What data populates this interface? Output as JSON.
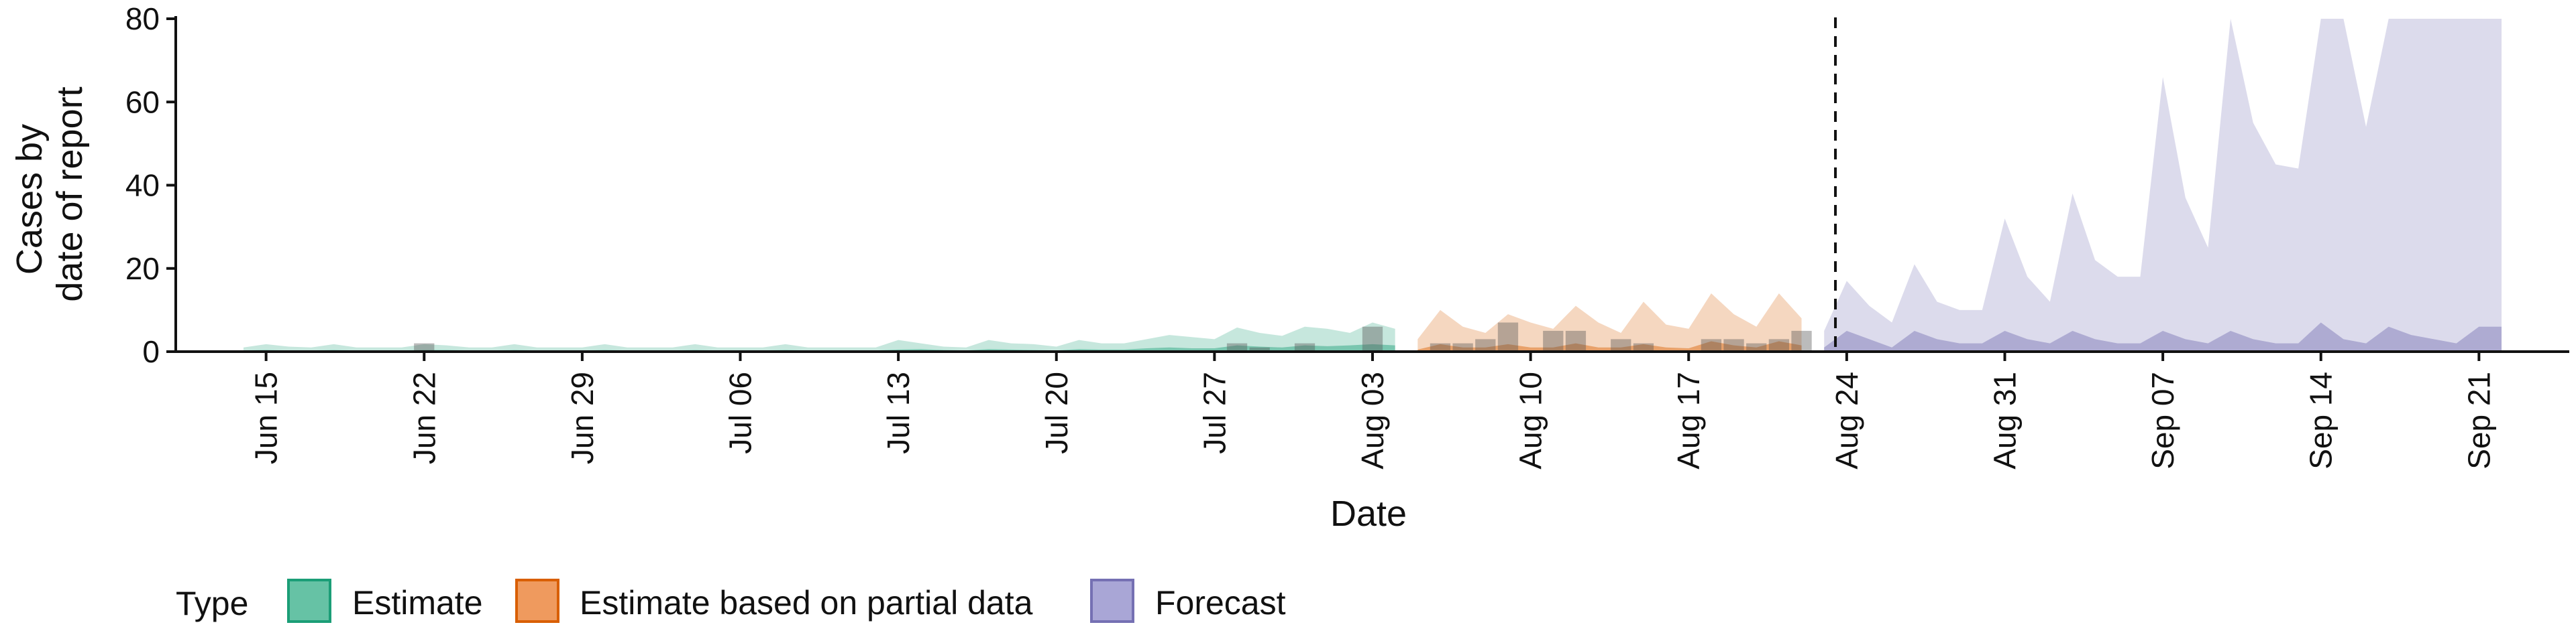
{
  "chart_data": {
    "type": "area",
    "xlabel": "Date",
    "ylabel_lines": [
      "Cases by",
      "date of report"
    ],
    "ylim": [
      0,
      80
    ],
    "y_ticks": [
      0,
      20,
      40,
      60,
      80
    ],
    "xlim": [
      "2020-06-11",
      "2020-09-25"
    ],
    "x_ticks": [
      "2020-06-15",
      "2020-06-22",
      "2020-06-29",
      "2020-07-06",
      "2020-07-13",
      "2020-07-20",
      "2020-07-27",
      "2020-08-03",
      "2020-08-10",
      "2020-08-17",
      "2020-08-24",
      "2020-08-31",
      "2020-09-07",
      "2020-09-14",
      "2020-09-21"
    ],
    "x_tick_labels": [
      "Jun 15",
      "Jun 22",
      "Jun 29",
      "Jul 06",
      "Jul 13",
      "Jul 20",
      "Jul 27",
      "Aug 03",
      "Aug 10",
      "Aug 17",
      "Aug 24",
      "Aug 31",
      "Sep 07",
      "Sep 14",
      "Sep 21"
    ],
    "forecast_date": "2020-08-23",
    "grid": false,
    "legend_position": "bottom",
    "legend_title": "Type",
    "series": [
      {
        "name": "Estimate",
        "color": "#1B9E77",
        "dates": [
          "2020-06-14",
          "2020-06-15",
          "2020-06-16",
          "2020-06-17",
          "2020-06-18",
          "2020-06-19",
          "2020-06-20",
          "2020-06-21",
          "2020-06-22",
          "2020-06-23",
          "2020-06-24",
          "2020-06-25",
          "2020-06-26",
          "2020-06-27",
          "2020-06-28",
          "2020-06-29",
          "2020-06-30",
          "2020-07-01",
          "2020-07-02",
          "2020-07-03",
          "2020-07-04",
          "2020-07-05",
          "2020-07-06",
          "2020-07-07",
          "2020-07-08",
          "2020-07-09",
          "2020-07-10",
          "2020-07-11",
          "2020-07-12",
          "2020-07-13",
          "2020-07-14",
          "2020-07-15",
          "2020-07-16",
          "2020-07-17",
          "2020-07-18",
          "2020-07-19",
          "2020-07-20",
          "2020-07-21",
          "2020-07-22",
          "2020-07-23",
          "2020-07-24",
          "2020-07-25",
          "2020-07-26",
          "2020-07-27",
          "2020-07-28",
          "2020-07-29",
          "2020-07-30",
          "2020-07-31",
          "2020-08-01",
          "2020-08-02",
          "2020-08-03",
          "2020-08-04"
        ],
        "inner_upper": [
          0.3,
          0.4,
          0.3,
          0.3,
          0.4,
          0.3,
          0.3,
          0.3,
          0.4,
          0.4,
          0.3,
          0.3,
          0.4,
          0.3,
          0.3,
          0.3,
          0.4,
          0.3,
          0.3,
          0.3,
          0.4,
          0.3,
          0.3,
          0.3,
          0.4,
          0.3,
          0.3,
          0.3,
          0.3,
          0.5,
          0.6,
          0.4,
          0.3,
          0.6,
          0.5,
          0.4,
          0.3,
          0.6,
          0.5,
          0.5,
          0.8,
          1.0,
          0.8,
          0.8,
          1.5,
          1.2,
          1.0,
          1.5,
          1.3,
          1.5,
          1.8,
          1.5
        ],
        "outer_upper": [
          1.0,
          1.8,
          1.2,
          1.0,
          1.8,
          1.0,
          1.0,
          1.0,
          1.8,
          1.5,
          1.0,
          1.0,
          1.8,
          1.0,
          1.0,
          1.0,
          1.8,
          1.0,
          1.0,
          1.0,
          1.8,
          1.0,
          1.0,
          1.0,
          1.8,
          1.0,
          1.0,
          1.0,
          1.0,
          2.8,
          2.0,
          1.2,
          1.0,
          2.8,
          2.0,
          1.8,
          1.2,
          2.8,
          2.0,
          2.0,
          3.0,
          4.0,
          3.5,
          3.0,
          5.8,
          4.5,
          3.8,
          6.0,
          5.5,
          4.5,
          7.0,
          5.5
        ],
        "observed": [
          {
            "date": "2020-06-22",
            "value": 2
          },
          {
            "date": "2020-07-28",
            "value": 2
          },
          {
            "date": "2020-07-29",
            "value": 1
          },
          {
            "date": "2020-07-31",
            "value": 2
          },
          {
            "date": "2020-08-03",
            "value": 6
          }
        ]
      },
      {
        "name": "Estimate based on partial data",
        "color": "#D95F02",
        "dates": [
          "2020-08-05",
          "2020-08-06",
          "2020-08-07",
          "2020-08-08",
          "2020-08-09",
          "2020-08-10",
          "2020-08-11",
          "2020-08-12",
          "2020-08-13",
          "2020-08-14",
          "2020-08-15",
          "2020-08-16",
          "2020-08-17",
          "2020-08-18",
          "2020-08-19",
          "2020-08-20",
          "2020-08-21",
          "2020-08-22"
        ],
        "inner_upper": [
          0.5,
          1.8,
          1.0,
          1.0,
          1.8,
          1.0,
          1.0,
          2.0,
          1.0,
          1.0,
          1.8,
          1.0,
          0.8,
          2.5,
          1.5,
          1.0,
          2.5,
          1.5
        ],
        "outer_upper": [
          3.0,
          10.0,
          6.0,
          4.5,
          9.0,
          7.0,
          5.5,
          11.0,
          7.0,
          4.5,
          12.0,
          6.5,
          5.5,
          14.0,
          9.0,
          6.0,
          14.0,
          8.0
        ],
        "observed": [
          {
            "date": "2020-08-06",
            "value": 2
          },
          {
            "date": "2020-08-07",
            "value": 2
          },
          {
            "date": "2020-08-08",
            "value": 3
          },
          {
            "date": "2020-08-09",
            "value": 7
          },
          {
            "date": "2020-08-11",
            "value": 5
          },
          {
            "date": "2020-08-12",
            "value": 5
          },
          {
            "date": "2020-08-14",
            "value": 3
          },
          {
            "date": "2020-08-15",
            "value": 2
          },
          {
            "date": "2020-08-18",
            "value": 3
          },
          {
            "date": "2020-08-19",
            "value": 3
          },
          {
            "date": "2020-08-20",
            "value": 2
          },
          {
            "date": "2020-08-21",
            "value": 3
          },
          {
            "date": "2020-08-22",
            "value": 5
          }
        ]
      },
      {
        "name": "Forecast",
        "color": "#7570B3",
        "dates": [
          "2020-08-23",
          "2020-08-24",
          "2020-08-25",
          "2020-08-26",
          "2020-08-27",
          "2020-08-28",
          "2020-08-29",
          "2020-08-30",
          "2020-08-31",
          "2020-09-01",
          "2020-09-02",
          "2020-09-03",
          "2020-09-04",
          "2020-09-05",
          "2020-09-06",
          "2020-09-07",
          "2020-09-08",
          "2020-09-09",
          "2020-09-10",
          "2020-09-11",
          "2020-09-12",
          "2020-09-13",
          "2020-09-14",
          "2020-09-15",
          "2020-09-16",
          "2020-09-17",
          "2020-09-18",
          "2020-09-19",
          "2020-09-20",
          "2020-09-21",
          "2020-09-22"
        ],
        "inner_upper": [
          1,
          5,
          3,
          1,
          5,
          3,
          2,
          2,
          5,
          3,
          2,
          5,
          3,
          2,
          2,
          5,
          3,
          2,
          5,
          3,
          2,
          2,
          7,
          3,
          2,
          6,
          4,
          3,
          2,
          6,
          6
        ],
        "outer_upper": [
          5,
          17,
          11,
          7,
          21,
          12,
          10,
          10,
          32,
          18,
          12,
          38,
          22,
          18,
          18,
          66,
          37,
          25,
          80,
          55,
          45,
          44,
          80,
          80,
          54,
          80,
          80,
          80,
          80,
          80,
          80
        ]
      }
    ]
  },
  "legend": {
    "title": "Type",
    "items": [
      {
        "label": "Estimate",
        "fill": "#66C2A5",
        "stroke": "#1B9E77"
      },
      {
        "label": "Estimate based on partial data",
        "fill": "#EF9A5E",
        "stroke": "#D95F02"
      },
      {
        "label": "Forecast",
        "fill": "#A9A6D6",
        "stroke": "#7570B3"
      }
    ]
  }
}
